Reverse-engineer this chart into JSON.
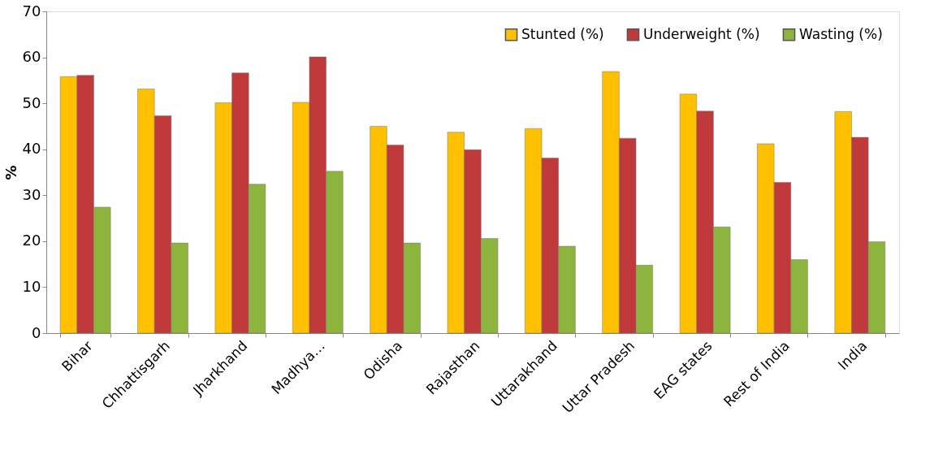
{
  "chart_data": {
    "type": "bar",
    "ylabel": "%",
    "categories": [
      "Bihar",
      "Chhattisgarh",
      "Jharkhand",
      "Madhya…",
      "Odisha",
      "Rajasthan",
      "Uttarakhand",
      "Uttar Pradesh",
      "EAG states",
      "Rest of India",
      "India"
    ],
    "series": [
      {
        "name": "Stunted (%)",
        "color": "#ffc000",
        "values": [
          55.8,
          53.1,
          50.1,
          50.2,
          45.0,
          43.7,
          44.5,
          56.9,
          52.0,
          41.2,
          48.2
        ]
      },
      {
        "name": "Underweight (%)",
        "color": "#c0393b",
        "values": [
          56.1,
          47.3,
          56.6,
          60.1,
          40.9,
          39.9,
          38.1,
          42.4,
          48.3,
          32.8,
          42.6
        ]
      },
      {
        "name": "Wasting (%)",
        "color": "#8db43c",
        "values": [
          27.4,
          19.6,
          32.4,
          35.2,
          19.6,
          20.6,
          18.9,
          14.8,
          23.1,
          16.0,
          19.9
        ]
      }
    ],
    "ylim": [
      0,
      70
    ],
    "yticks": [
      0,
      10,
      20,
      30,
      40,
      50,
      60,
      70
    ],
    "grid": false,
    "legend": "top right"
  }
}
